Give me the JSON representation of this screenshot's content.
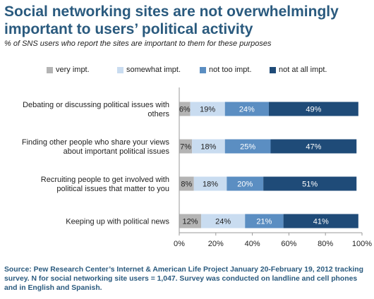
{
  "title": "Social networking sites are not overwhelmingly important to users’ political activity",
  "subtitle": "% of SNS users who report the sites are important to them for these purposes",
  "source": "Source: Pew Research Center’s Internet & American Life Project January 20-February 19, 2012 tracking survey. N for social networking site users = 1,047. Survey was conducted on landline and cell phones and in English and Spanish.",
  "colors": {
    "very_impt": "#b4b4b4",
    "somewhat_impt": "#c9dcf0",
    "not_too_impt": "#5b8ec2",
    "not_at_all_impt": "#1f4b78"
  },
  "chart_data": {
    "type": "bar",
    "orientation": "horizontal",
    "stacked": true,
    "categories": [
      [
        "Debating or discussing political issues with",
        "others"
      ],
      [
        "Finding other people who share your views",
        "about important political issues"
      ],
      [
        "Recruiting people to get involved with",
        "political issues that matter to you"
      ],
      [
        "Keeping up with political news"
      ]
    ],
    "series": [
      {
        "name": "very impt.",
        "color": "#b4b4b4",
        "values": [
          6,
          7,
          8,
          12
        ]
      },
      {
        "name": "somewhat impt.",
        "color": "#c9dcf0",
        "values": [
          19,
          18,
          18,
          24
        ]
      },
      {
        "name": "not too impt.",
        "color": "#5b8ec2",
        "values": [
          24,
          25,
          20,
          21
        ]
      },
      {
        "name": "not at all impt.",
        "color": "#1f4b78",
        "values": [
          49,
          47,
          51,
          41
        ]
      }
    ],
    "data_labels": [
      [
        "6%",
        "7%",
        "8%",
        "12%"
      ],
      [
        "19%",
        "18%",
        "18%",
        "24%"
      ],
      [
        "24%",
        "25%",
        "20%",
        "21%"
      ],
      [
        "49%",
        "47%",
        "51%",
        "41%"
      ]
    ],
    "xlim": [
      0,
      100
    ],
    "xticks": [
      0,
      20,
      40,
      60,
      80,
      100
    ],
    "xtick_labels": [
      "0%",
      "20%",
      "40%",
      "60%",
      "80%",
      "100%"
    ],
    "grid": false,
    "legend_position": "top"
  }
}
